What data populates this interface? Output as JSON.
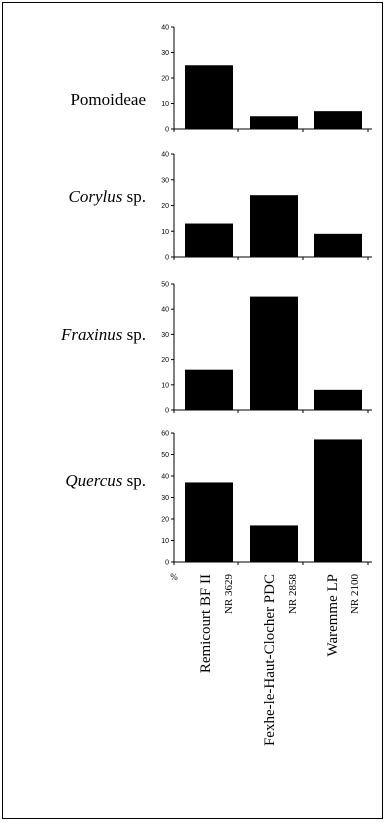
{
  "chart_data": {
    "type": "bar",
    "unit_label": "%",
    "categories": [
      {
        "site": "Remicourt BF II",
        "sample": "NR 3629"
      },
      {
        "site": "Fexhe-le-Haut-Clocher PDC",
        "sample": "NR 2858"
      },
      {
        "site": "Waremme LP",
        "sample": "NR 2100"
      }
    ],
    "panels": [
      {
        "taxon": "Pomoideae",
        "italic_part": "",
        "suffix": "",
        "ylim": [
          0,
          40
        ],
        "ticks": [
          0,
          10,
          20,
          30,
          40
        ],
        "values": [
          25,
          5,
          7
        ]
      },
      {
        "taxon": "Corylus sp.",
        "italic_part": "Corylus",
        "suffix": " sp.",
        "ylim": [
          0,
          40
        ],
        "ticks": [
          0,
          10,
          20,
          30,
          40
        ],
        "values": [
          13,
          24,
          9
        ]
      },
      {
        "taxon": "Fraxinus sp.",
        "italic_part": "Fraxinus",
        "suffix": " sp.",
        "ylim": [
          0,
          50
        ],
        "ticks": [
          0,
          10,
          20,
          30,
          40,
          50
        ],
        "values": [
          16,
          45,
          8
        ]
      },
      {
        "taxon": "Quercus sp.",
        "italic_part": "Quercus",
        "suffix": " sp.",
        "ylim": [
          0,
          60
        ],
        "ticks": [
          0,
          10,
          20,
          30,
          40,
          50,
          60
        ],
        "values": [
          37,
          17,
          57
        ]
      }
    ],
    "colors": {
      "bar": "#000000",
      "axis": "#000000"
    }
  }
}
